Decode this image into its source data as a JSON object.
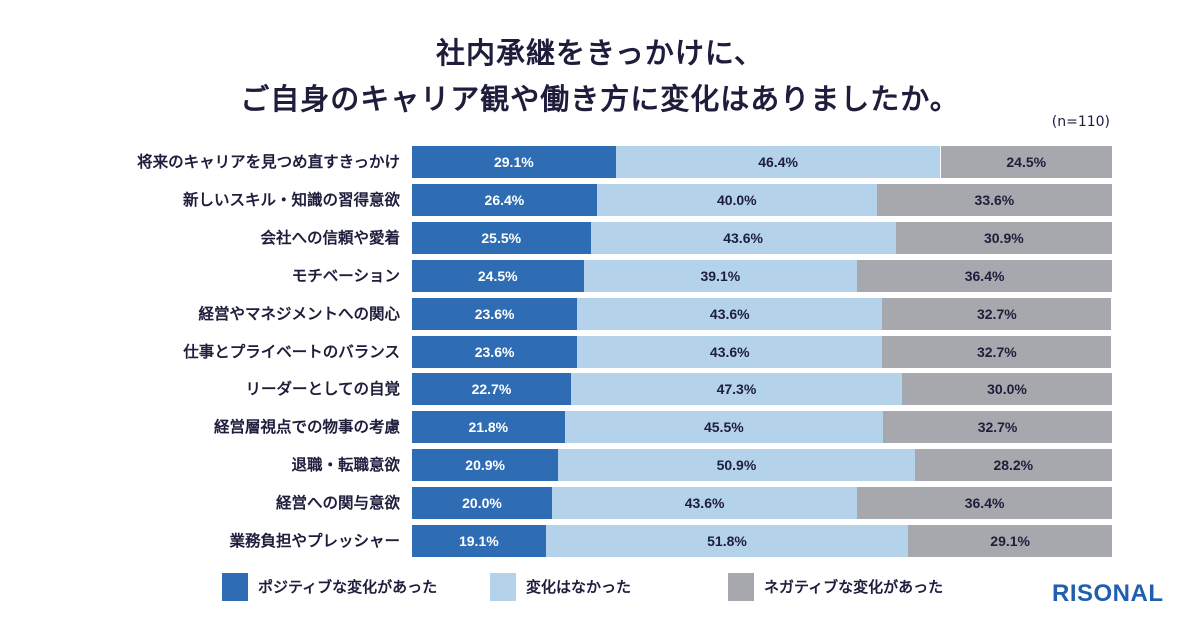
{
  "chart_data": {
    "type": "bar",
    "orientation": "horizontal",
    "stacked": true,
    "title_lines": [
      "社内承継をきっかけに、",
      "ご自身のキャリア観や働き方に変化はありましたか。"
    ],
    "sample_note": "(n=110)",
    "categories": [
      "将来のキャリアを見つめ直すきっかけ",
      "新しいスキル・知識の習得意欲",
      "会社への信頼や愛着",
      "モチベーション",
      "経営やマネジメントへの関心",
      "仕事とプライベートのバランス",
      "リーダーとしての自覚",
      "経営層視点での物事の考慮",
      "退職・転職意欲",
      "経営への関与意欲",
      "業務負担やプレッシャー"
    ],
    "series": [
      {
        "name": "ポジティブな変化があった",
        "color": "#2e6db4",
        "text_color": "#ffffff",
        "values": [
          29.1,
          26.4,
          25.5,
          24.5,
          23.6,
          23.6,
          22.7,
          21.8,
          20.9,
          20.0,
          19.1
        ]
      },
      {
        "name": "変化はなかった",
        "color": "#b4d3ea",
        "text_color": "#1e1e3c",
        "values": [
          46.4,
          40.0,
          43.6,
          39.1,
          43.6,
          43.6,
          47.3,
          45.5,
          50.9,
          43.6,
          51.8
        ]
      },
      {
        "name": "ネガティブな変化があった",
        "color": "#a7a8ad",
        "text_color": "#1e1e3c",
        "values": [
          24.5,
          33.6,
          30.9,
          36.4,
          32.7,
          32.7,
          30.0,
          32.7,
          28.2,
          36.4,
          29.1
        ]
      }
    ],
    "value_suffix": "%",
    "xlim": [
      0,
      100
    ],
    "legend_position": "bottom",
    "grid": false
  },
  "brand": {
    "logo_text": "RISONAL",
    "color": "#1f5fae"
  }
}
